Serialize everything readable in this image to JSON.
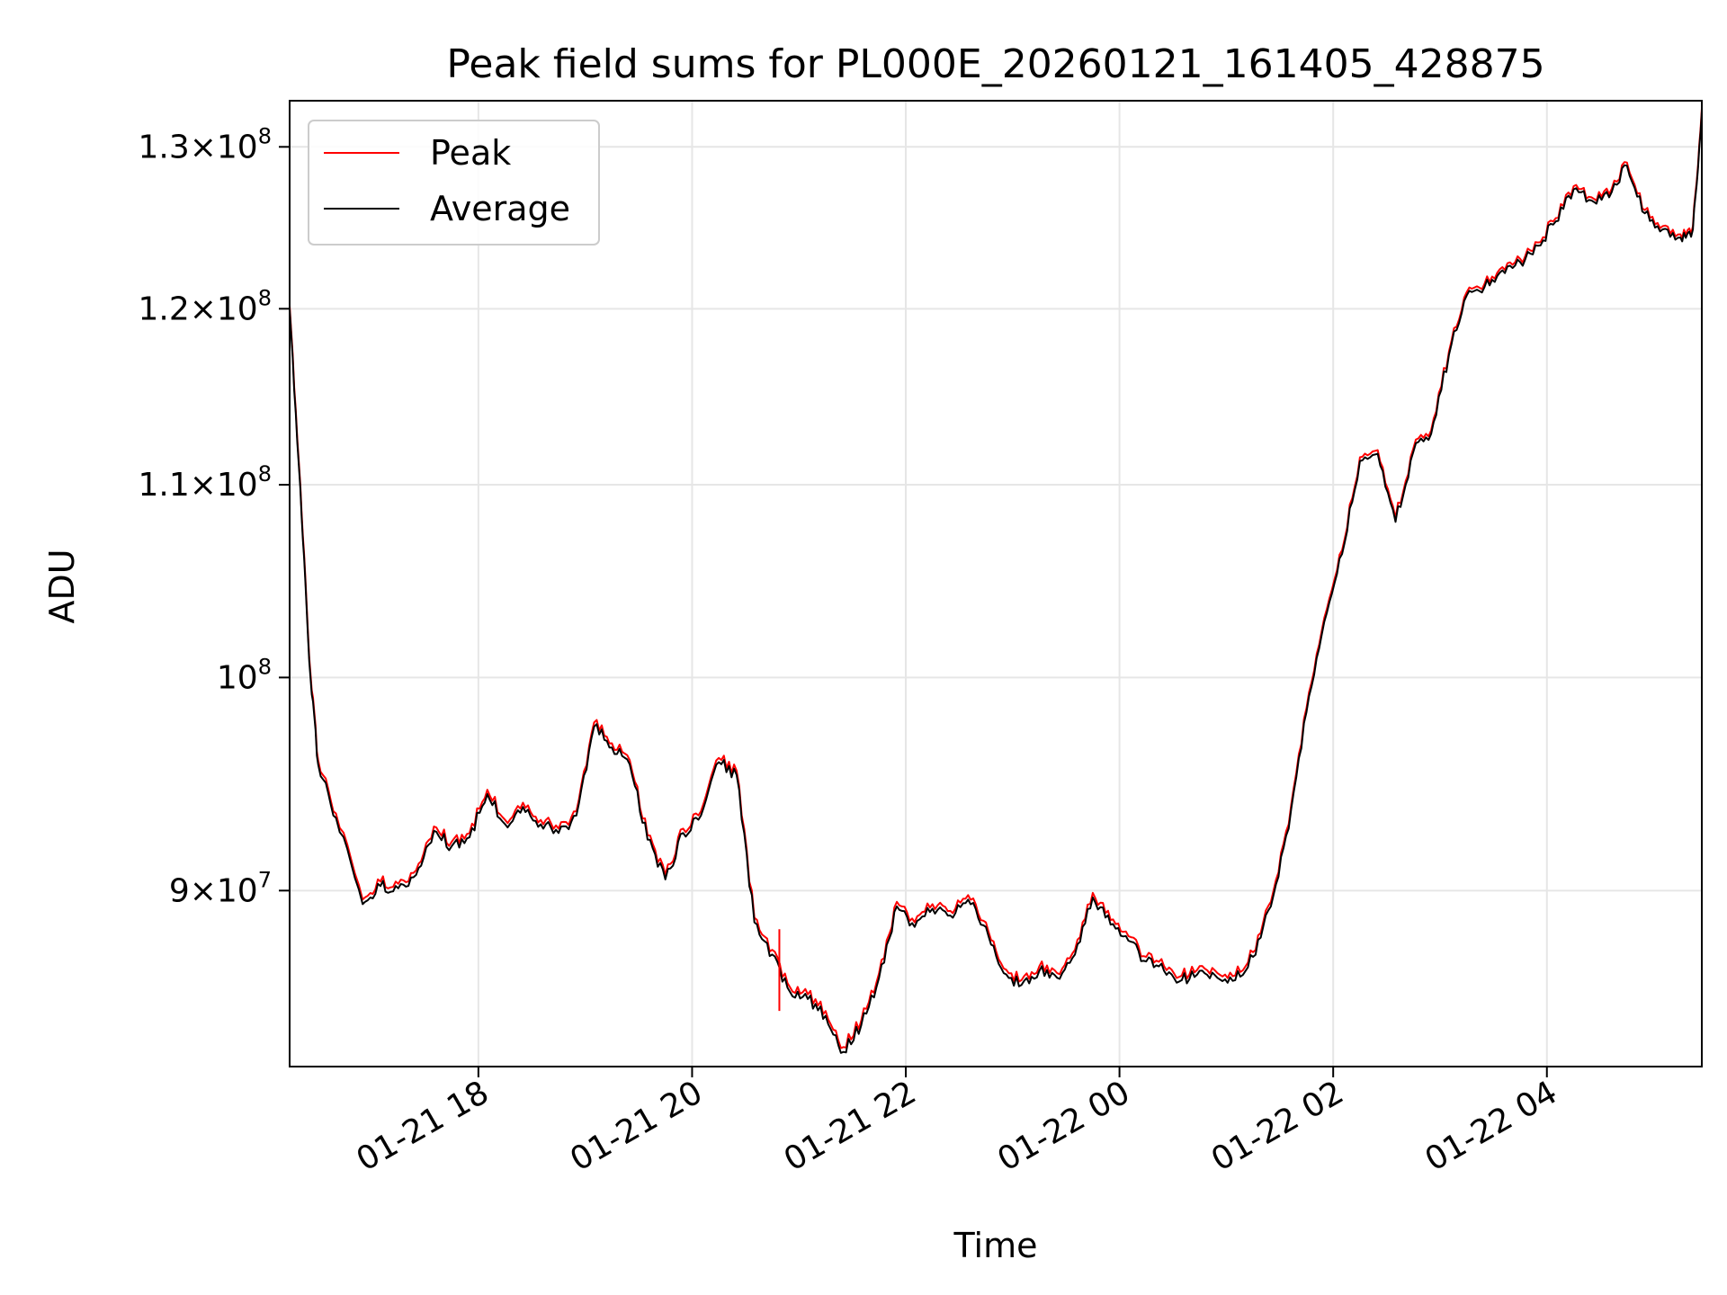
{
  "chart_data": {
    "type": "line",
    "title": "Peak field sums for PL000E_20260121_161405_428875",
    "xlabel": "Time",
    "ylabel": "ADU",
    "y_scale": "log",
    "ylim": [
      82500000,
      133000000
    ],
    "xlim": [
      "2026-01-21 16:14",
      "2026-01-22 05:27"
    ],
    "grid": true,
    "legend": "top-left",
    "x_ticks": [
      {
        "value": "2026-01-21 18:00",
        "label": "01-21 18"
      },
      {
        "value": "2026-01-21 20:00",
        "label": "01-21 20"
      },
      {
        "value": "2026-01-21 22:00",
        "label": "01-21 22"
      },
      {
        "value": "2026-01-22 00:00",
        "label": "01-22 00"
      },
      {
        "value": "2026-01-22 02:00",
        "label": "01-22 02"
      },
      {
        "value": "2026-01-22 04:00",
        "label": "01-22 04"
      }
    ],
    "y_ticks": [
      {
        "value": 90000000,
        "base": "9",
        "exp": "7"
      },
      {
        "value": 100000000,
        "base": "",
        "exp": "8"
      },
      {
        "value": 110000000,
        "base": "1.1",
        "exp": "8"
      },
      {
        "value": 120000000,
        "base": "1.2",
        "exp": "8"
      },
      {
        "value": 130000000,
        "base": "1.3",
        "exp": "8"
      }
    ],
    "x": [
      "2026-01-21 16:14",
      "2026-01-21 16:20",
      "2026-01-21 16:25",
      "2026-01-21 16:30",
      "2026-01-21 16:40",
      "2026-01-21 16:55",
      "2026-01-21 17:05",
      "2026-01-21 17:15",
      "2026-01-21 17:25",
      "2026-01-21 17:35",
      "2026-01-21 17:45",
      "2026-01-21 17:55",
      "2026-01-21 18:05",
      "2026-01-21 18:15",
      "2026-01-21 18:25",
      "2026-01-21 18:35",
      "2026-01-21 18:45",
      "2026-01-21 18:55",
      "2026-01-21 19:05",
      "2026-01-21 19:15",
      "2026-01-21 19:25",
      "2026-01-21 19:35",
      "2026-01-21 19:45",
      "2026-01-21 19:55",
      "2026-01-21 20:05",
      "2026-01-21 20:15",
      "2026-01-21 20:25",
      "2026-01-21 20:35",
      "2026-01-21 20:45",
      "2026-01-21 20:55",
      "2026-01-21 21:05",
      "2026-01-21 21:15",
      "2026-01-21 21:25",
      "2026-01-21 21:35",
      "2026-01-21 21:45",
      "2026-01-21 21:55",
      "2026-01-21 22:05",
      "2026-01-21 22:15",
      "2026-01-21 22:25",
      "2026-01-21 22:35",
      "2026-01-21 22:45",
      "2026-01-21 22:55",
      "2026-01-21 23:05",
      "2026-01-21 23:15",
      "2026-01-21 23:25",
      "2026-01-21 23:35",
      "2026-01-21 23:45",
      "2026-01-21 23:55",
      "2026-01-22 00:05",
      "2026-01-22 00:15",
      "2026-01-22 00:25",
      "2026-01-22 00:35",
      "2026-01-22 00:45",
      "2026-01-22 00:55",
      "2026-01-22 01:05",
      "2026-01-22 01:15",
      "2026-01-22 01:25",
      "2026-01-22 01:35",
      "2026-01-22 01:45",
      "2026-01-22 01:55",
      "2026-01-22 02:05",
      "2026-01-22 02:15",
      "2026-01-22 02:25",
      "2026-01-22 02:35",
      "2026-01-22 02:45",
      "2026-01-22 02:55",
      "2026-01-22 03:05",
      "2026-01-22 03:15",
      "2026-01-22 03:25",
      "2026-01-22 03:35",
      "2026-01-22 03:45",
      "2026-01-22 03:55",
      "2026-01-22 04:05",
      "2026-01-22 04:15",
      "2026-01-22 04:25",
      "2026-01-22 04:35",
      "2026-01-22 04:45",
      "2026-01-22 04:55",
      "2026-01-22 05:05",
      "2026-01-22 05:15",
      "2026-01-22 05:22",
      "2026-01-22 05:27"
    ],
    "series": [
      {
        "name": "Peak",
        "color": "#ff0000",
        "values": [
          120200000,
          110000000,
          101000000,
          96000000,
          93500000,
          89600000,
          90400000,
          90300000,
          90900000,
          92900000,
          92200000,
          92600000,
          94600000,
          93200000,
          94000000,
          93200000,
          92800000,
          93600000,
          97800000,
          96800000,
          96000000,
          92500000,
          90700000,
          92800000,
          93600000,
          96100000,
          95500000,
          88800000,
          87400000,
          85800000,
          85500000,
          84800000,
          83300000,
          84400000,
          86400000,
          89500000,
          88600000,
          89400000,
          89100000,
          89800000,
          88600000,
          86600000,
          86100000,
          86700000,
          86400000,
          87400000,
          89900000,
          88700000,
          88000000,
          87100000,
          86700000,
          86300000,
          86700000,
          86400000,
          86300000,
          87300000,
          89500000,
          93000000,
          98500000,
          103000000,
          106500000,
          111500000,
          111900000,
          108200000,
          112000000,
          113000000,
          117500000,
          121000000,
          121500000,
          122500000,
          123000000,
          124000000,
          125500000,
          127500000,
          126800000,
          127000000,
          129000000,
          126000000,
          125000000,
          124500000,
          125000000,
          132500000
        ]
      },
      {
        "name": "Average",
        "color": "#000000",
        "values": [
          120000000,
          109800000,
          100800000,
          95800000,
          93300000,
          89400000,
          90200000,
          90100000,
          90700000,
          92700000,
          92000000,
          92400000,
          94400000,
          93000000,
          93800000,
          93000000,
          92600000,
          93400000,
          97600000,
          96600000,
          95800000,
          92300000,
          90500000,
          92600000,
          93400000,
          95900000,
          95300000,
          88600000,
          87200000,
          85600000,
          85300000,
          84600000,
          83100000,
          84200000,
          86200000,
          89300000,
          88400000,
          89200000,
          88900000,
          89600000,
          88400000,
          86400000,
          85900000,
          86500000,
          86200000,
          87200000,
          89700000,
          88500000,
          87800000,
          86900000,
          86500000,
          86100000,
          86500000,
          86200000,
          86100000,
          87100000,
          89300000,
          92800000,
          98300000,
          102800000,
          106300000,
          111300000,
          111700000,
          108000000,
          111800000,
          112800000,
          117300000,
          120800000,
          121300000,
          122300000,
          122800000,
          123800000,
          125300000,
          127300000,
          126600000,
          126800000,
          128800000,
          125800000,
          124800000,
          124300000,
          124800000,
          132300000
        ]
      }
    ],
    "spike": {
      "x": "2026-01-21 20:49",
      "y_low": 84800000,
      "y_high": 88300000
    }
  }
}
